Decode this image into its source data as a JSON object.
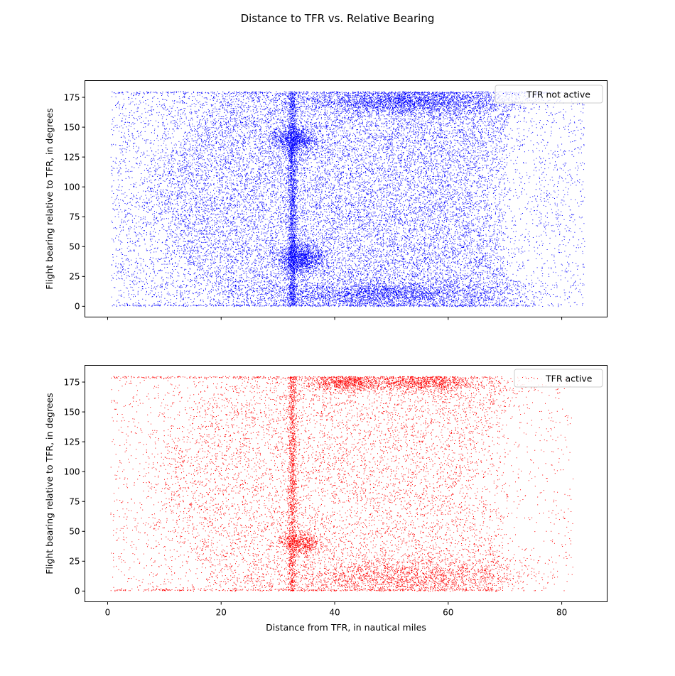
{
  "chart_data": {
    "type": "scatter",
    "title": "Distance to TFR vs. Relative Bearing",
    "shared_x": true,
    "xlabel": "Distance from TFR, in nautical miles",
    "xlim": [
      -4,
      88
    ],
    "xticks": [
      0,
      20,
      40,
      60,
      80
    ],
    "panels": [
      {
        "name": "TFR not active",
        "color": "#0000ff",
        "legend_loc": "top-right",
        "ylabel": "Flight bearing relative to TFR, in degrees",
        "ylim": [
          -9,
          189
        ],
        "yticks": [
          0,
          25,
          50,
          75,
          100,
          125,
          150,
          175
        ],
        "x_range": [
          0.5,
          84
        ],
        "y_range": [
          0,
          180
        ],
        "approx_points": 30000,
        "clusters": [
          {
            "x_center": 32.5,
            "x_spread": 0.4,
            "y_range": [
              0,
              180
            ],
            "weight": 0.06
          },
          {
            "x_center": 34,
            "y_center": 40,
            "x_spread": 2,
            "y_spread": 6,
            "weight": 0.04
          },
          {
            "x_center": 33,
            "y_center": 140,
            "x_spread": 2,
            "y_spread": 6,
            "weight": 0.03
          },
          {
            "x_center": 52,
            "y_center": 172,
            "x_spread": 9,
            "y_spread": 6,
            "weight": 0.08
          },
          {
            "x_center": 48,
            "y_center": 10,
            "x_spread": 10,
            "y_spread": 6,
            "weight": 0.07
          }
        ]
      },
      {
        "name": "TFR active",
        "color": "#ff0000",
        "legend_loc": "top-right",
        "ylabel": "Flight bearing relative to TFR, in degrees",
        "ylim": [
          -9,
          189
        ],
        "yticks": [
          0,
          25,
          50,
          75,
          100,
          125,
          150,
          175
        ],
        "x_range": [
          0.5,
          82
        ],
        "y_range": [
          0,
          180
        ],
        "approx_points": 14000,
        "clusters": [
          {
            "x_center": 32.5,
            "x_spread": 0.4,
            "y_range": [
              0,
              180
            ],
            "weight": 0.08
          },
          {
            "x_center": 34,
            "y_center": 40,
            "x_spread": 2,
            "y_spread": 5,
            "weight": 0.04
          },
          {
            "x_center": 42,
            "y_center": 175,
            "x_spread": 3,
            "y_spread": 4,
            "weight": 0.05
          },
          {
            "x_center": 55,
            "y_center": 175,
            "x_spread": 5,
            "y_spread": 4,
            "weight": 0.07
          },
          {
            "x_center": 52,
            "y_center": 12,
            "x_spread": 10,
            "y_spread": 8,
            "weight": 0.12
          }
        ]
      }
    ]
  }
}
